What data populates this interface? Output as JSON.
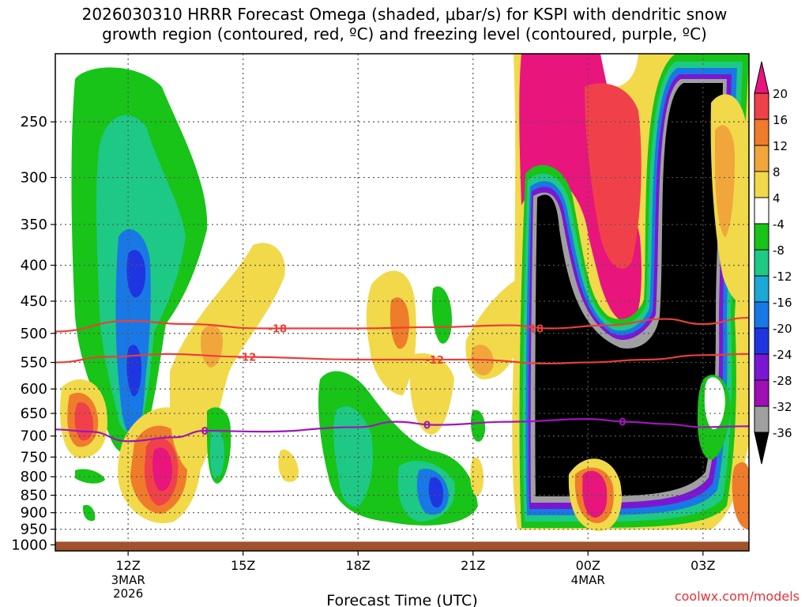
{
  "title": "2026030310 HRRR Forecast Omega (shaded, μbar/s) for KSPI with dendritic snow\ngrowth region (contoured, red, ºC) and freezing level (contoured, purple, ºC)",
  "credit": "coolwx.com/models",
  "chart_data": {
    "type": "time-height-section",
    "title": "2026030310 HRRR Forecast Omega (shaded, μbar/s) for KSPI with dendritic snow growth region (contoured, red, ºC) and freezing level (contoured, purple, ºC)",
    "xlabel": "Forecast Time (UTC)",
    "ylabel": "",
    "x_range_hours": [
      -1.9,
      16.2
    ],
    "y_range_hpa": [
      1020,
      200
    ],
    "y_ticks": [
      250,
      300,
      350,
      400,
      450,
      500,
      550,
      600,
      650,
      700,
      750,
      800,
      850,
      900,
      950,
      1000
    ],
    "x_ticks": [
      {
        "hour": 0,
        "label": "12Z",
        "sub": [
          "3MAR",
          "2026"
        ]
      },
      {
        "hour": 3,
        "label": "15Z",
        "sub": []
      },
      {
        "hour": 6,
        "label": "18Z",
        "sub": []
      },
      {
        "hour": 9,
        "label": "21Z",
        "sub": []
      },
      {
        "hour": 12,
        "label": "00Z",
        "sub": [
          "4MAR"
        ]
      },
      {
        "hour": 15,
        "label": "03Z",
        "sub": []
      }
    ],
    "colorbar": {
      "labels": [
        "20",
        "16",
        "12",
        "8",
        "4",
        "-4",
        "-8",
        "-12",
        "-16",
        "-20",
        "-24",
        "-28",
        "-32",
        "-36"
      ],
      "levels": [
        20,
        16,
        12,
        8,
        4,
        -4,
        -8,
        -12,
        -16,
        -20,
        -24,
        -28,
        -32,
        -36
      ],
      "colors": [
        "#e8157d",
        "#f0414a",
        "#ef7c2a",
        "#f1a63b",
        "#f1d94a",
        "#ffffff",
        "#17c417",
        "#1ec985",
        "#1aa9d6",
        "#1879e6",
        "#2035e2",
        "#7a17d3",
        "#9e0fb4",
        "#a0a0a0",
        "#000000"
      ]
    },
    "omega_features": [
      {
        "center_hour": -0.5,
        "center_hpa": 270,
        "value": -8
      },
      {
        "center_hour": 0.0,
        "center_hpa": 420,
        "value": -24
      },
      {
        "center_hour": 0.0,
        "center_hpa": 590,
        "value": -24
      },
      {
        "center_hour": -1.0,
        "center_hpa": 700,
        "value": 16
      },
      {
        "center_hour": 1.0,
        "center_hpa": 805,
        "value": 20
      },
      {
        "center_hour": 8.0,
        "center_hpa": 860,
        "value": -24
      },
      {
        "center_hour": 13.0,
        "center_hpa": 420,
        "value": -36
      },
      {
        "center_hour": 15.0,
        "center_hpa": 620,
        "value": -36
      },
      {
        "center_hour": 11.2,
        "center_hpa": 300,
        "value": 20
      },
      {
        "center_hour": 12.0,
        "center_hpa": 900,
        "value": 20
      }
    ],
    "contours": [
      {
        "label": "-18",
        "color": "#e8403a",
        "kind": "dendritic",
        "points": [
          {
            "hour": -1.9,
            "hpa": 497
          },
          {
            "hour": 0,
            "hpa": 480
          },
          {
            "hour": 1.5,
            "hpa": 485
          },
          {
            "hour": 3.5,
            "hpa": 492
          },
          {
            "hour": 6,
            "hpa": 492
          },
          {
            "hour": 8,
            "hpa": 490
          },
          {
            "hour": 10,
            "hpa": 487
          },
          {
            "hour": 11,
            "hpa": 492
          },
          {
            "hour": 12.5,
            "hpa": 487
          },
          {
            "hour": 14,
            "hpa": 477
          },
          {
            "hour": 15,
            "hpa": 485
          },
          {
            "hour": 16.2,
            "hpa": 475
          }
        ],
        "label_positions": [
          {
            "hour": 3.9
          },
          {
            "hour": 10.6
          }
        ]
      },
      {
        "label": "-12",
        "color": "#e8403a",
        "kind": "dendritic",
        "points": [
          {
            "hour": -1.9,
            "hpa": 550
          },
          {
            "hour": -0.5,
            "hpa": 540
          },
          {
            "hour": 1,
            "hpa": 535
          },
          {
            "hour": 3,
            "hpa": 540
          },
          {
            "hour": 6,
            "hpa": 545
          },
          {
            "hour": 9,
            "hpa": 545
          },
          {
            "hour": 11,
            "hpa": 552
          },
          {
            "hour": 12,
            "hpa": 550
          },
          {
            "hour": 13.5,
            "hpa": 545
          },
          {
            "hour": 15,
            "hpa": 537
          },
          {
            "hour": 16.2,
            "hpa": 535
          }
        ],
        "label_positions": [
          {
            "hour": 3.1
          },
          {
            "hour": 8.0
          }
        ]
      },
      {
        "label": "0",
        "color": "#9f16b9",
        "kind": "freezing",
        "points": [
          {
            "hour": -1.9,
            "hpa": 685
          },
          {
            "hour": -1,
            "hpa": 690
          },
          {
            "hour": 0,
            "hpa": 712
          },
          {
            "hour": 1.2,
            "hpa": 703
          },
          {
            "hour": 2,
            "hpa": 688
          },
          {
            "hour": 3.5,
            "hpa": 690
          },
          {
            "hour": 6,
            "hpa": 680
          },
          {
            "hour": 7,
            "hpa": 668
          },
          {
            "hour": 8,
            "hpa": 675
          },
          {
            "hour": 10,
            "hpa": 668
          },
          {
            "hour": 12,
            "hpa": 662
          },
          {
            "hour": 13,
            "hpa": 668
          },
          {
            "hour": 14,
            "hpa": 673
          },
          {
            "hour": 15,
            "hpa": 680
          },
          {
            "hour": 16.2,
            "hpa": 678
          }
        ],
        "label_positions": [
          {
            "hour": 2.0
          },
          {
            "hour": 7.8
          },
          {
            "hour": 12.9
          }
        ]
      }
    ]
  }
}
